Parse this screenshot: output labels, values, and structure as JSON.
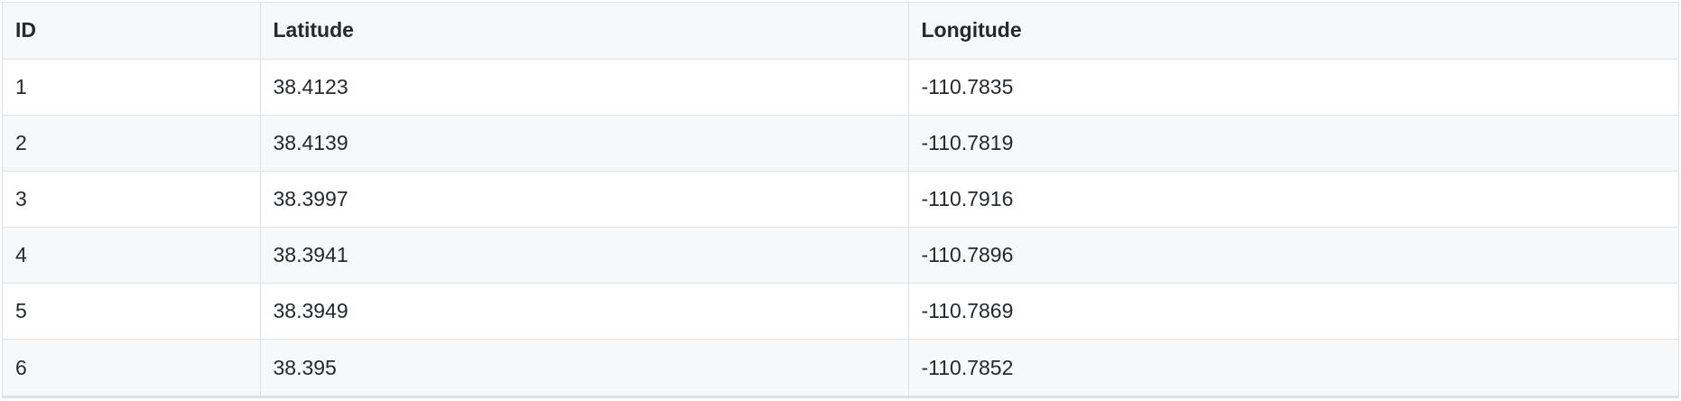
{
  "table": {
    "headers": [
      "ID",
      "Latitude",
      "Longitude"
    ],
    "rows": [
      [
        "1",
        "38.4123",
        "-110.7835"
      ],
      [
        "2",
        "38.4139",
        "-110.7819"
      ],
      [
        "3",
        "38.3997",
        "-110.7916"
      ],
      [
        "4",
        "38.3941",
        "-110.7896"
      ],
      [
        "5",
        "38.3949",
        "-110.7869"
      ],
      [
        "6",
        "38.395",
        "-110.7852"
      ]
    ]
  },
  "colors": {
    "border": "#dfe2e5",
    "header_bg": "#f6f8fa",
    "stripe_bg": "#f6f8fa",
    "text": "#24292e"
  }
}
